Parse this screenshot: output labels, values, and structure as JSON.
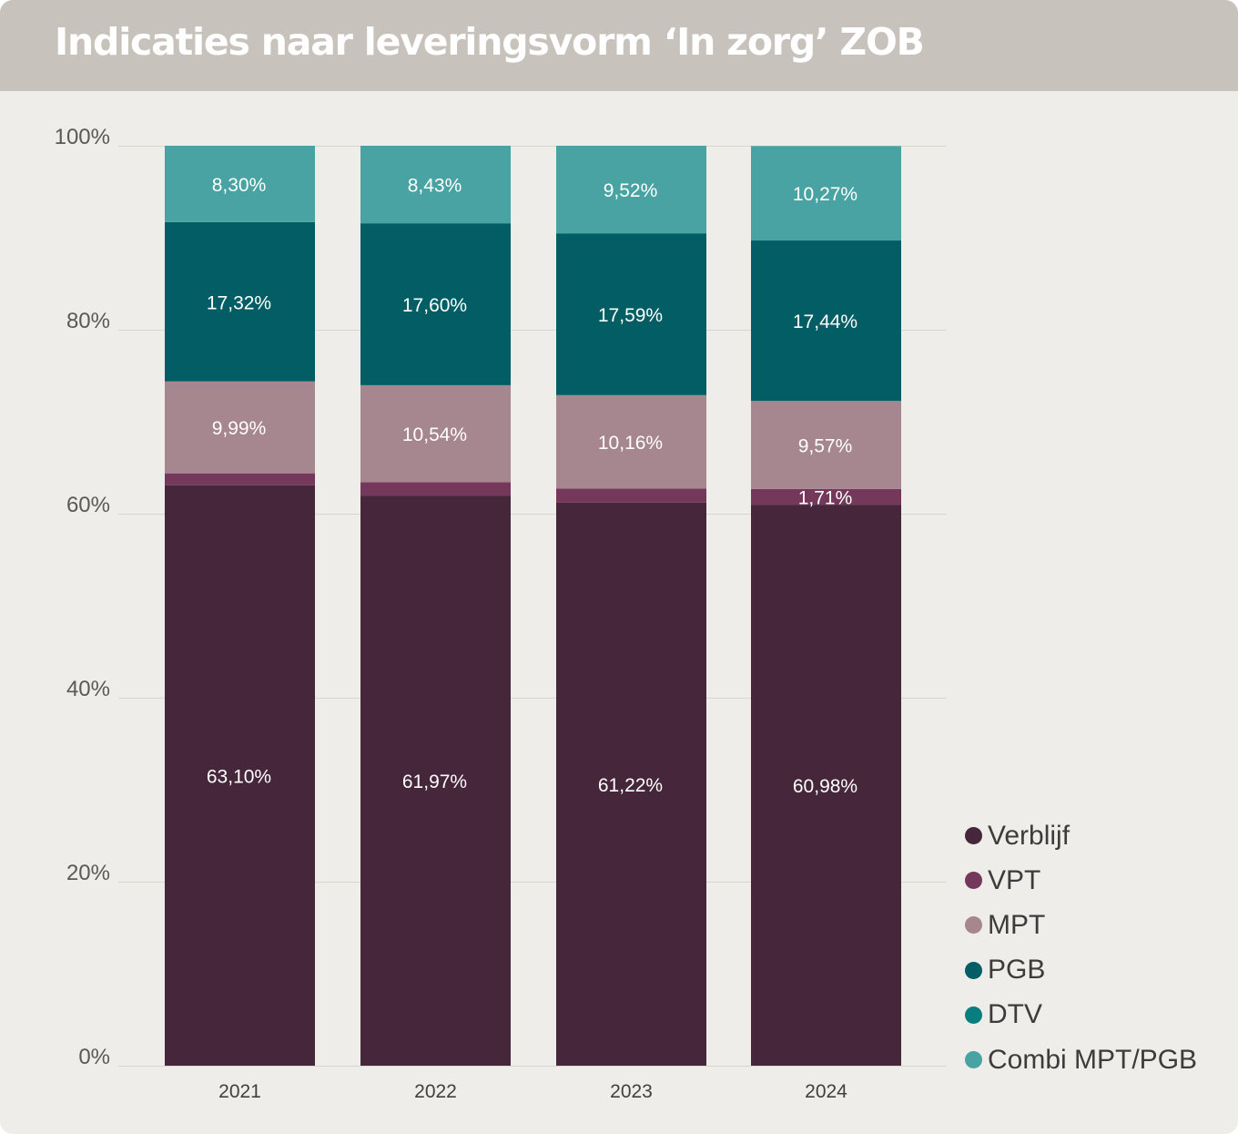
{
  "header": {
    "title": "Indicaties naar leveringsvorm ‘In zorg’ ZOB"
  },
  "chart_data": {
    "type": "bar",
    "stacked": true,
    "title": "Indicaties naar leveringsvorm ‘In zorg’ ZOB",
    "xlabel": "",
    "ylabel": "",
    "ylim": [
      0,
      100
    ],
    "y_ticks": [
      "0%",
      "20%",
      "40%",
      "60%",
      "80%",
      "100%"
    ],
    "grid": true,
    "legend_position": "bottom-right",
    "categories": [
      "2021",
      "2022",
      "2023",
      "2024"
    ],
    "series": [
      {
        "name": "Verblijf",
        "color": "#45263a",
        "values": [
          63.1,
          61.97,
          61.22,
          60.98
        ],
        "labels": [
          "63,10%",
          "61,97%",
          "61,22%",
          "60,98%"
        ]
      },
      {
        "name": "VPT",
        "color": "#74385a",
        "values": [
          1.29,
          1.46,
          1.51,
          1.71
        ],
        "labels": [
          "",
          "",
          "",
          "1,71%"
        ]
      },
      {
        "name": "MPT",
        "color": "#a6868f",
        "values": [
          9.99,
          10.54,
          10.16,
          9.57
        ],
        "labels": [
          "9,99%",
          "10,54%",
          "10,16%",
          "9,57%"
        ]
      },
      {
        "name": "PGB",
        "color": "#025e64",
        "values": [
          17.32,
          17.6,
          17.59,
          17.44
        ],
        "labels": [
          "17,32%",
          "17,60%",
          "17,59%",
          "17,44%"
        ]
      },
      {
        "name": "DTV",
        "color": "#087f7f",
        "values": [
          0,
          0,
          0,
          0
        ],
        "labels": [
          "",
          "",
          "",
          ""
        ]
      },
      {
        "name": "Combi MPT/PGB",
        "color": "#48a3a2",
        "values": [
          8.3,
          8.43,
          9.52,
          10.27
        ],
        "labels": [
          "8,30%",
          "8,43%",
          "9,52%",
          "10,27%"
        ]
      }
    ]
  },
  "legend": [
    {
      "name": "Verblijf",
      "color": "#45263a"
    },
    {
      "name": "VPT",
      "color": "#74385a"
    },
    {
      "name": "MPT",
      "color": "#a6868f"
    },
    {
      "name": "PGB",
      "color": "#025e64"
    },
    {
      "name": "DTV",
      "color": "#087f7f"
    },
    {
      "name": "Combi MPT/PGB",
      "color": "#48a3a2"
    }
  ]
}
